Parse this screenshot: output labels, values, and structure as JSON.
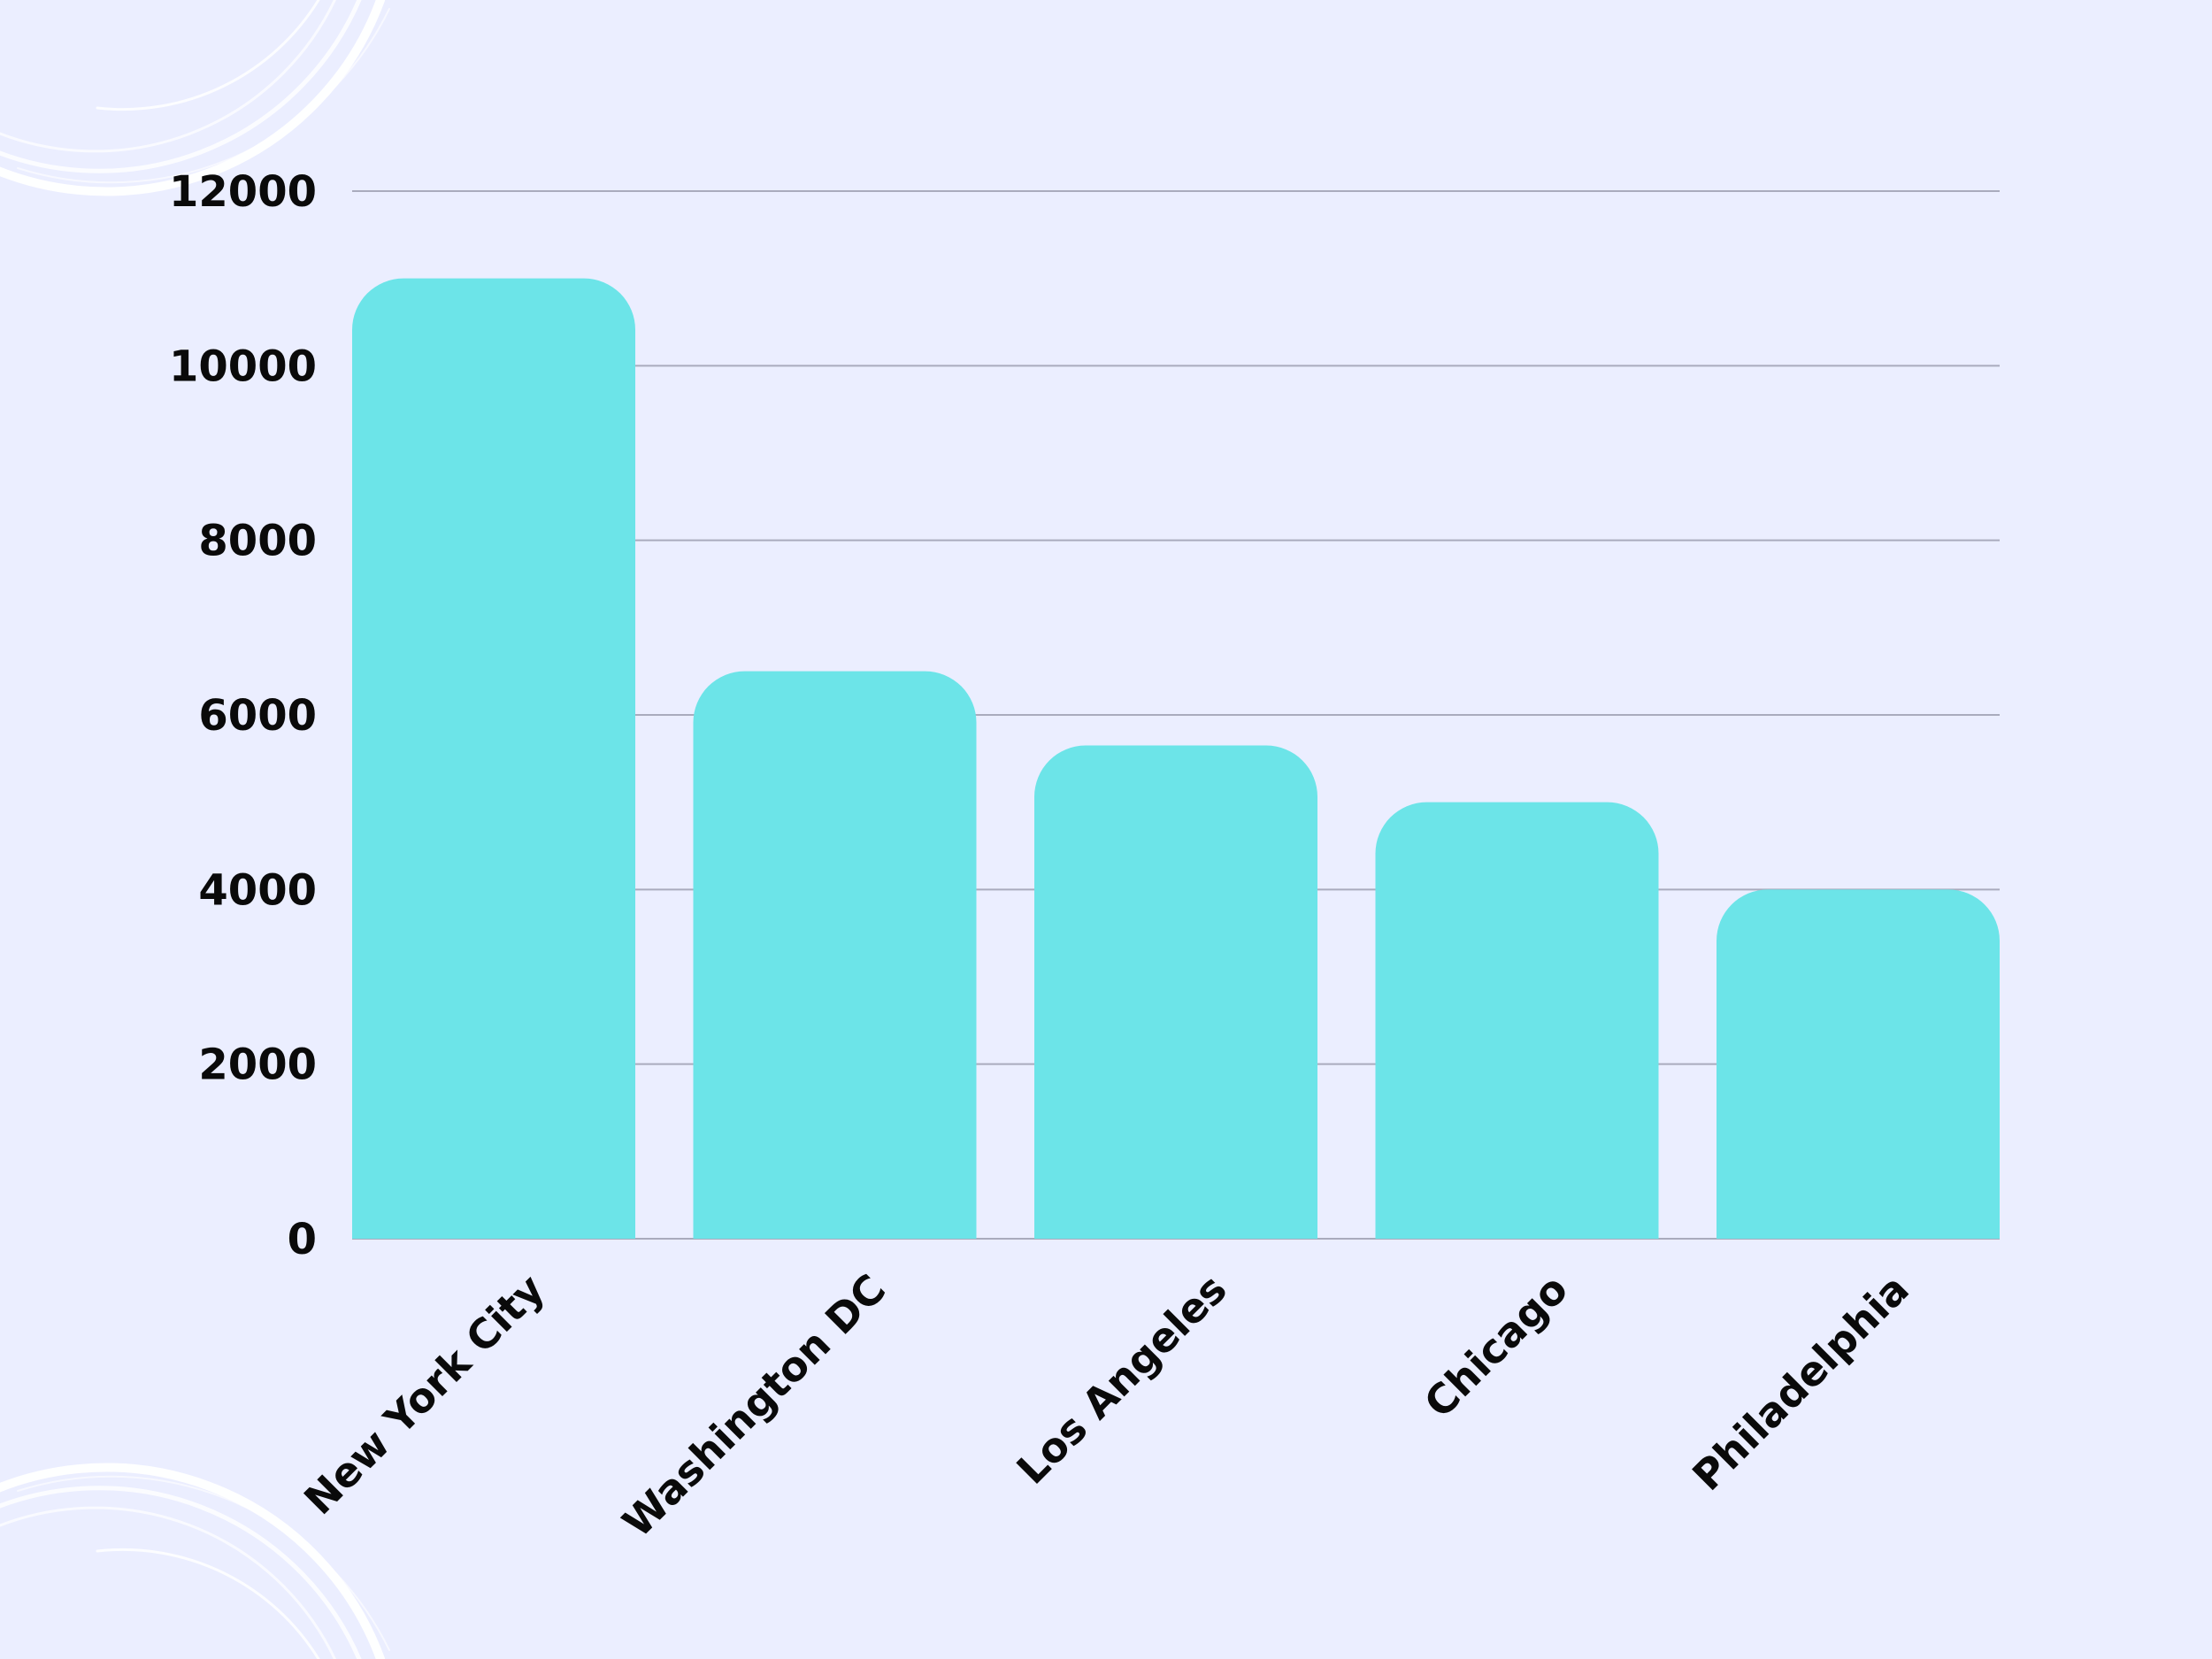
{
  "chart_data": {
    "type": "bar",
    "categories": [
      "New York City",
      "Washington DC",
      "Los Angeles",
      "Chicago",
      "Philadelphia"
    ],
    "values": [
      11000,
      6500,
      5650,
      5000,
      4000
    ],
    "ylim": [
      0,
      12000
    ],
    "yticks": [
      0,
      2000,
      4000,
      6000,
      8000,
      10000,
      12000
    ],
    "grid": true,
    "title": "",
    "xlabel": "",
    "ylabel": ""
  },
  "colors": {
    "background": "#ebeeff",
    "bar": "#6ce4e8",
    "gridline": "#a9abbd",
    "text": "#0a0a0a",
    "swirl": "#ffffff"
  }
}
